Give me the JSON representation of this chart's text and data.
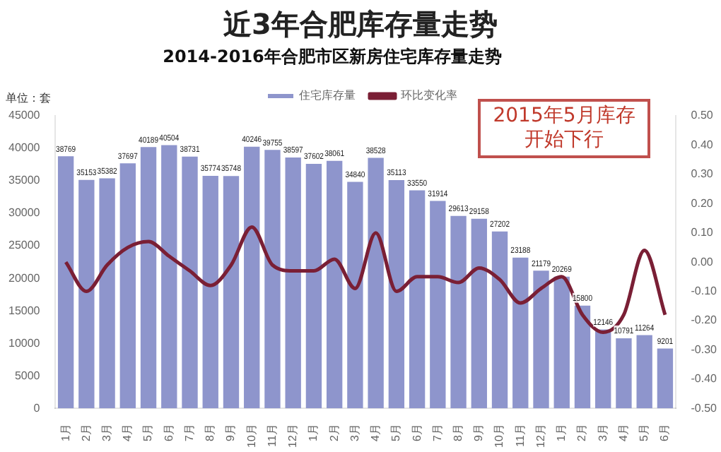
{
  "chart_data": {
    "type": "bar",
    "title": "近3年合肥库存量走势",
    "subtitle": "2014-2016年合肥市区新房住宅库存量走势",
    "ylabel": "单位：套",
    "categories": [
      "1月",
      "2月",
      "3月",
      "4月",
      "5月",
      "6月",
      "7月",
      "8月",
      "9月",
      "10月",
      "11月",
      "12月",
      "1月",
      "2月",
      "3月",
      "4月",
      "5月",
      "6月",
      "7月",
      "8月",
      "9月",
      "10月",
      "11月",
      "12月",
      "1月",
      "2月",
      "3月",
      "4月",
      "5月",
      "6月"
    ],
    "series": [
      {
        "name": "住宅库存量",
        "color": "#8e95cc",
        "values": [
          38769,
          35153,
          35382,
          37697,
          40189,
          40504,
          38731,
          35774,
          35748,
          40246,
          39755,
          38597,
          37602,
          38061,
          34840,
          38528,
          35113,
          33550,
          31914,
          29613,
          29158,
          27202,
          23188,
          21179,
          20269,
          15800,
          12146,
          10791,
          11264,
          9201
        ],
        "value_labels": [
          "38769",
          "35153",
          "35382",
          "37697",
          "40189",
          "40504",
          "38731",
          "35774",
          "35748",
          "40246",
          "39755",
          "38597",
          "37602",
          "38061",
          "34840",
          "38528",
          "35113",
          "33550",
          "31914",
          "29613",
          "29158",
          "27202",
          "23188",
          "21179",
          "20269",
          "15800",
          "12146",
          "10791",
          "11264",
          "9201"
        ]
      },
      {
        "name": "环比变化率",
        "type": "line",
        "axis": "y2",
        "color": "#7a1f35",
        "values": [
          0.0,
          -0.1,
          -0.01,
          0.05,
          0.07,
          0.02,
          -0.03,
          -0.08,
          -0.01,
          0.12,
          -0.01,
          -0.03,
          -0.03,
          0.01,
          -0.09,
          0.1,
          -0.1,
          -0.05,
          -0.05,
          -0.07,
          -0.02,
          -0.06,
          -0.14,
          -0.09,
          -0.05,
          -0.18,
          -0.24,
          -0.18,
          0.04,
          -0.18
        ]
      }
    ],
    "ylim": [
      0,
      45000
    ],
    "yticks": [
      0,
      5000,
      10000,
      15000,
      20000,
      25000,
      30000,
      35000,
      40000,
      45000
    ],
    "y2lim": [
      -0.5,
      0.5
    ],
    "y2ticks": [
      {
        "value": -0.5,
        "label": "-0.50"
      },
      {
        "value": -0.4,
        "label": "-0.40"
      },
      {
        "value": -0.3,
        "label": "-0.30"
      },
      {
        "value": -0.2,
        "label": "-0.20"
      },
      {
        "value": -0.1,
        "label": "-0.10"
      },
      {
        "value": 0,
        "label": "0.00"
      },
      {
        "value": 0.1,
        "label": "0.10"
      },
      {
        "value": 0.2,
        "label": "0.20"
      },
      {
        "value": 0.3,
        "label": "0.30"
      },
      {
        "value": 0.4,
        "label": "0.40"
      },
      {
        "value": 0.5,
        "label": "0.50"
      }
    ],
    "legend": "top",
    "grid": false,
    "marker": "none",
    "annotations": [
      "2015年5月库存开始下行"
    ]
  }
}
